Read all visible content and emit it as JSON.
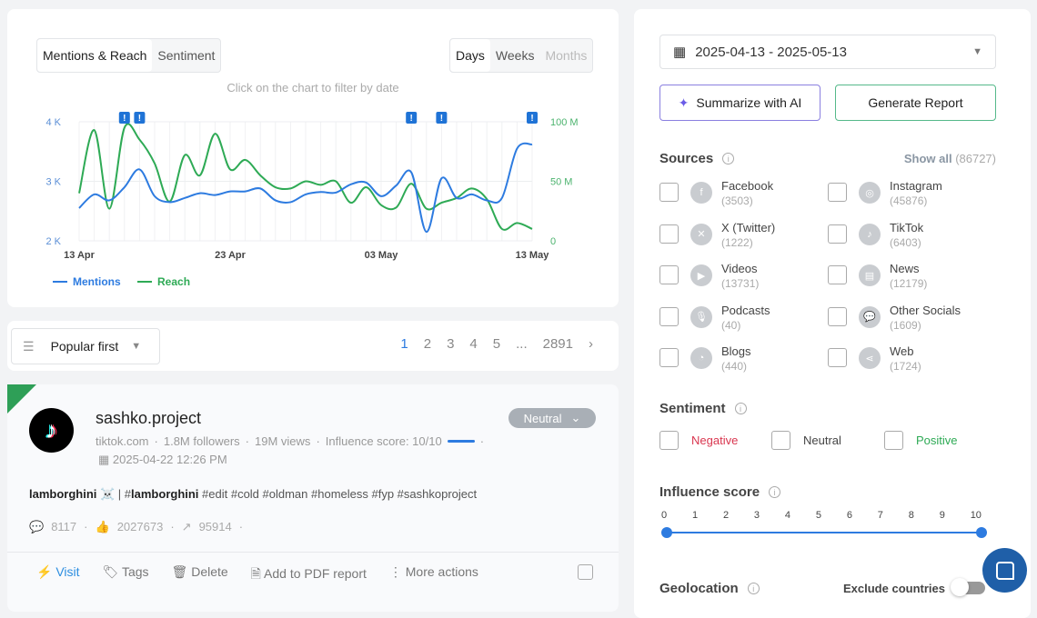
{
  "chart_tabs": {
    "items": [
      {
        "label": "Mentions & Reach",
        "active": true
      },
      {
        "label": "Sentiment",
        "active": false
      }
    ]
  },
  "period_tabs": {
    "items": [
      {
        "label": "Days",
        "active": true
      },
      {
        "label": "Weeks",
        "active": false
      },
      {
        "label": "Months",
        "disabled": true
      }
    ]
  },
  "chart_hint": "Click on the chart to filter by date",
  "chart_data": {
    "type": "line",
    "x_ticks": [
      "13 Apr",
      "23 Apr",
      "03 May",
      "13 May"
    ],
    "x_start": "2025-04-13",
    "x_end": "2025-05-13",
    "y_left": {
      "ticks": [
        "2 K",
        "3 K",
        "4 K"
      ],
      "range": [
        2000,
        4000
      ]
    },
    "y_right": {
      "ticks": [
        "0",
        "50 M",
        "100 M"
      ],
      "range": [
        0,
        100000000
      ]
    },
    "grid": true,
    "legend_position": "bottom-left",
    "series": [
      {
        "name": "Mentions",
        "axis": "left",
        "color": "#2d7be0",
        "values": [
          2550,
          2780,
          2680,
          2900,
          3200,
          2750,
          2650,
          2720,
          2800,
          2770,
          2830,
          2830,
          2880,
          2680,
          2650,
          2780,
          2820,
          2810,
          2950,
          2980,
          2750,
          2930,
          3150,
          2150,
          3050,
          2720,
          2780,
          2680,
          2720,
          3550,
          3620
        ]
      },
      {
        "name": "Reach",
        "axis": "right",
        "color": "#2eaa55",
        "values": [
          40000000,
          93000000,
          27000000,
          95000000,
          85000000,
          65000000,
          33000000,
          72000000,
          55000000,
          90000000,
          60000000,
          68000000,
          55000000,
          45000000,
          44000000,
          50000000,
          47000000,
          50000000,
          32000000,
          45000000,
          30000000,
          28000000,
          48000000,
          27000000,
          32000000,
          36000000,
          44000000,
          35000000,
          10000000,
          15000000,
          10000000
        ]
      }
    ],
    "alert_markers": [
      "2025-04-16",
      "2025-04-17",
      "2025-05-05",
      "2025-05-07",
      "2025-05-13"
    ],
    "alert_glyph": "!"
  },
  "sort": {
    "label": "Popular first"
  },
  "pagination": {
    "pages": [
      "1",
      "2",
      "3",
      "4",
      "5",
      "...",
      "2891"
    ],
    "current": "1",
    "accent": "#2d7be0"
  },
  "post": {
    "author": "sashko.project",
    "platform": "tiktok.com",
    "followers": "1.8M followers",
    "views": "19M views",
    "influence": "Influence score: 10/10",
    "date": "2025-04-22 12:26 PM",
    "sentiment": "Neutral",
    "text_bold1": "lamborghini ☠️",
    "text_sep": " | #",
    "text_bold2": "lamborghini",
    "text_rest": " #edit #cold #oldman #homeless #fyp #sashkoproject",
    "comments": "8117",
    "likes": "2027673",
    "shares": "95914",
    "actions": [
      "Visit",
      "Tags",
      "Delete",
      "Add to PDF report",
      "More actions"
    ]
  },
  "filters": {
    "date_range": "2025-04-13 - 2025-05-13",
    "summarize": "Summarize with AI",
    "report": "Generate Report",
    "sources_title": "Sources",
    "show_all": "Show all",
    "show_all_count": "(86727)",
    "sources": [
      {
        "name": "Facebook",
        "count": "(3503)",
        "icon": "f"
      },
      {
        "name": "Instagram",
        "count": "(45876)",
        "icon": "◎"
      },
      {
        "name": "X (Twitter)",
        "count": "(1222)",
        "icon": "✕"
      },
      {
        "name": "TikTok",
        "count": "(6403)",
        "icon": "♪"
      },
      {
        "name": "Videos",
        "count": "(13731)",
        "icon": "▶"
      },
      {
        "name": "News",
        "count": "(12179)",
        "icon": "▤"
      },
      {
        "name": "Podcasts",
        "count": "(40)",
        "icon": "🎙"
      },
      {
        "name": "Other Socials",
        "count": "(1609)",
        "icon": "💬"
      },
      {
        "name": "Blogs",
        "count": "(440)",
        "icon": "◔"
      },
      {
        "name": "Web",
        "count": "(1724)",
        "icon": "⋖"
      }
    ],
    "sentiment_title": "Sentiment",
    "sentiments": [
      {
        "label": "Negative",
        "color": "#d9364f"
      },
      {
        "label": "Neutral",
        "color": "#444444"
      },
      {
        "label": "Positive",
        "color": "#2eaa55"
      }
    ],
    "influence_title": "Influence score",
    "influence_ticks": [
      "0",
      "1",
      "2",
      "3",
      "4",
      "5",
      "6",
      "7",
      "8",
      "9",
      "10"
    ],
    "influence_range": [
      0,
      10
    ],
    "geo_title": "Geolocation",
    "exclude_countries": "Exclude countries",
    "exclude_on": false
  }
}
